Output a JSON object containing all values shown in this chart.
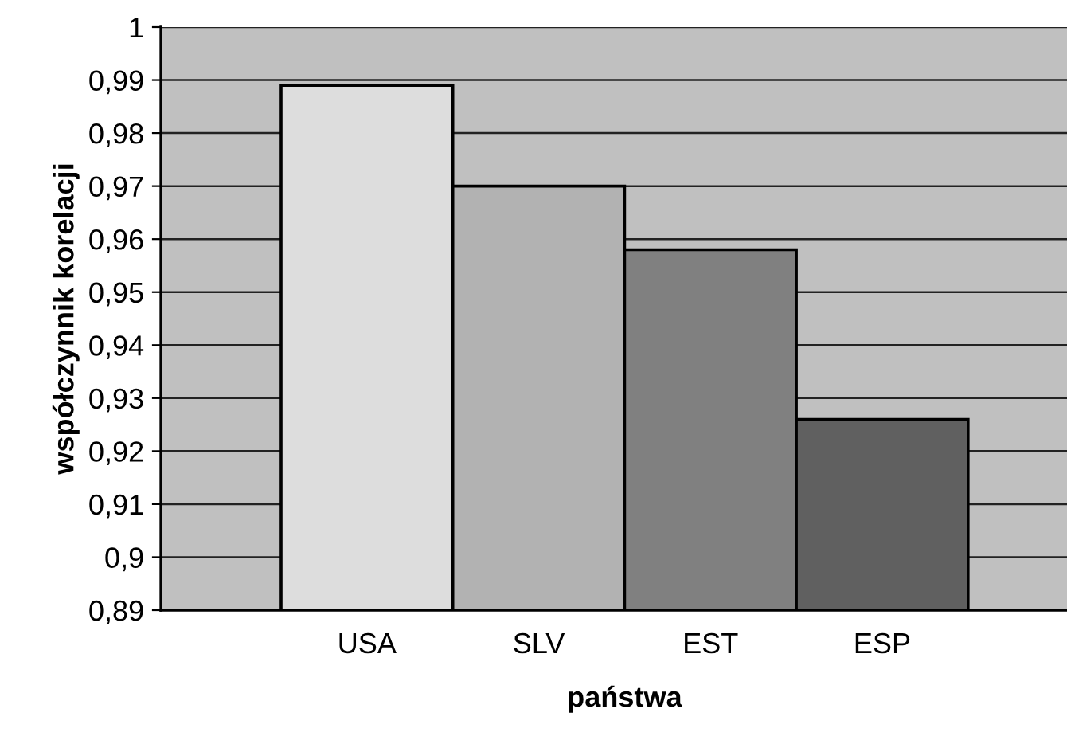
{
  "chart_data": {
    "type": "bar",
    "xlabel": "państwa",
    "ylabel": "współczynnik korelacji",
    "categories": [
      "USA",
      "SLV",
      "EST",
      "ESP"
    ],
    "values": [
      0.989,
      0.97,
      0.958,
      0.926
    ],
    "colors": [
      "#dddddd",
      "#b2b2b2",
      "#808080",
      "#606060"
    ],
    "ylim": [
      0.89,
      1
    ],
    "yticks": [
      {
        "value": 0.89,
        "label": "0,89"
      },
      {
        "value": 0.9,
        "label": "0,9"
      },
      {
        "value": 0.91,
        "label": "0,91"
      },
      {
        "value": 0.92,
        "label": "0,92"
      },
      {
        "value": 0.93,
        "label": "0,93"
      },
      {
        "value": 0.94,
        "label": "0,94"
      },
      {
        "value": 0.95,
        "label": "0,95"
      },
      {
        "value": 0.96,
        "label": "0,96"
      },
      {
        "value": 0.97,
        "label": "0,97"
      },
      {
        "value": 0.98,
        "label": "0,98"
      },
      {
        "value": 0.99,
        "label": "0,99"
      },
      {
        "value": 1,
        "label": "1"
      }
    ],
    "grid": "y",
    "legend": false
  }
}
